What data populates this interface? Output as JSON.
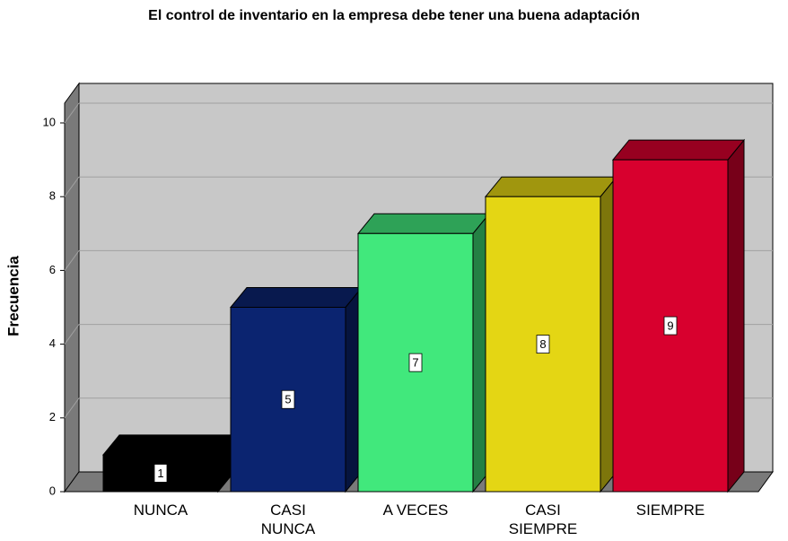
{
  "chart_data": {
    "type": "bar3d",
    "title": "El control de inventario en la empresa debe tener una buena adaptación",
    "y_label": "Frecuencia",
    "categories": [
      "NUNCA",
      "CASI\nNUNCA",
      "A VECES",
      "CASI\nSIEMPRE",
      "SIEMPRE"
    ],
    "values": [
      1,
      5,
      7,
      8,
      9
    ],
    "colors": [
      "#000000",
      "#0b2470",
      "#41e87c",
      "#e4d614",
      "#d8002e"
    ],
    "ylim": [
      0,
      10
    ],
    "yticks": [
      0,
      2,
      4,
      6,
      8,
      10
    ],
    "grid": true
  }
}
